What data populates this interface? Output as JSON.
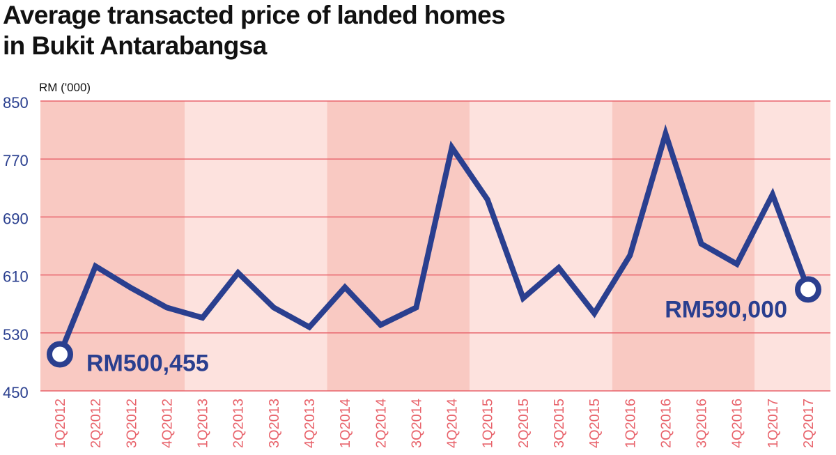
{
  "title_line1": "Average transacted price of landed homes",
  "title_line2": "in Bukit Antarabangsa",
  "colors": {
    "line": "#2a3f8f",
    "band_dark": "#f9c9c2",
    "band_light": "#fde2de",
    "gridline": "#e8636b",
    "tick_label": "#e8636b",
    "axis_label": "#2a3f8f",
    "annotation": "#2a3f8f"
  },
  "chart_data": {
    "type": "line",
    "title": "Average transacted price of landed homes in Bukit Antarabangsa",
    "ylabel": "RM ('000)",
    "ylim": [
      450,
      850
    ],
    "yticks": [
      450,
      530,
      610,
      690,
      770,
      850
    ],
    "grid": true,
    "categories": [
      "1Q2012",
      "2Q2012",
      "3Q2012",
      "4Q2012",
      "1Q2013",
      "2Q2013",
      "3Q2013",
      "4Q2013",
      "1Q2014",
      "2Q2014",
      "3Q2014",
      "4Q2014",
      "1Q2015",
      "2Q2015",
      "3Q2015",
      "4Q2015",
      "1Q2016",
      "2Q2016",
      "3Q2016",
      "4Q2016",
      "1Q2017",
      "2Q2017"
    ],
    "values": [
      500.455,
      622,
      592,
      565,
      551,
      613,
      565,
      538,
      593,
      541,
      565,
      786,
      714,
      578,
      620,
      557,
      637,
      805,
      653,
      625,
      721,
      590
    ],
    "annotations": [
      {
        "index": 0,
        "text": "RM500,455"
      },
      {
        "index": 21,
        "text": "RM590,000"
      }
    ]
  }
}
